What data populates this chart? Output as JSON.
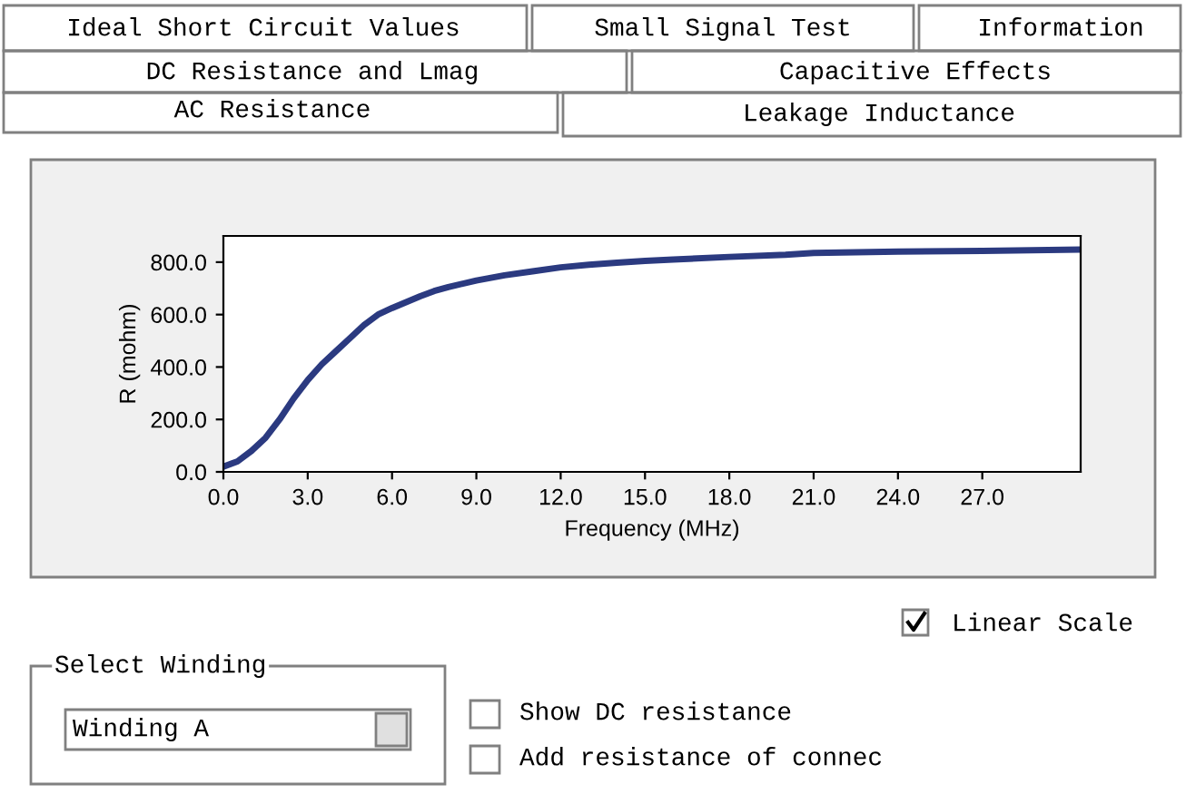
{
  "chart_data": {
    "type": "line",
    "xlabel": "Frequency (MHz)",
    "ylabel": "R (mohm)",
    "x": [
      0,
      0.5,
      1,
      1.5,
      2,
      2.5,
      3,
      3.5,
      4,
      4.5,
      5,
      5.5,
      6,
      7,
      7.5,
      8,
      9,
      10,
      11,
      12,
      13,
      14,
      15,
      16,
      18,
      20,
      21,
      24,
      27,
      30.5
    ],
    "series": [
      {
        "color": "#2b3a80",
        "values": [
          20,
          40,
          80,
          130,
          200,
          280,
          350,
          410,
          460,
          510,
          560,
          600,
          625,
          670,
          690,
          705,
          730,
          750,
          765,
          780,
          790,
          798,
          805,
          810,
          820,
          828,
          835,
          840,
          843,
          848
        ]
      }
    ],
    "xlim": [
      0,
      30.5
    ],
    "ylim": [
      0,
      900
    ],
    "xticks": [
      {
        "value": 0,
        "label": "0.0"
      },
      {
        "value": 3,
        "label": "3.0"
      },
      {
        "value": 6,
        "label": "6.0"
      },
      {
        "value": 9,
        "label": "9.0"
      },
      {
        "value": 12,
        "label": "12.0"
      },
      {
        "value": 15,
        "label": "15.0"
      },
      {
        "value": 18,
        "label": "18.0"
      },
      {
        "value": 21,
        "label": "21.0"
      },
      {
        "value": 24,
        "label": "24.0"
      },
      {
        "value": 27,
        "label": "27.0"
      }
    ],
    "yticks": [
      {
        "value": 0,
        "label": "0.0"
      },
      {
        "value": 200,
        "label": "200.0"
      },
      {
        "value": 400,
        "label": "400.0"
      },
      {
        "value": 600,
        "label": "600.0"
      },
      {
        "value": 800,
        "label": "800.0"
      }
    ],
    "grid": false,
    "marker": "none",
    "line_style": "solid",
    "annotations": [
      "Ideal Short Circuit Values",
      "Small Signal Test",
      "Information",
      "DC Resistance and Lmag",
      "Capacitive Effects",
      "AC Resistance",
      "Leakage Inductance",
      "Linear Scale",
      "Select Winding",
      "Winding A",
      "Show DC resistance",
      "Add resistance of connec"
    ]
  }
}
